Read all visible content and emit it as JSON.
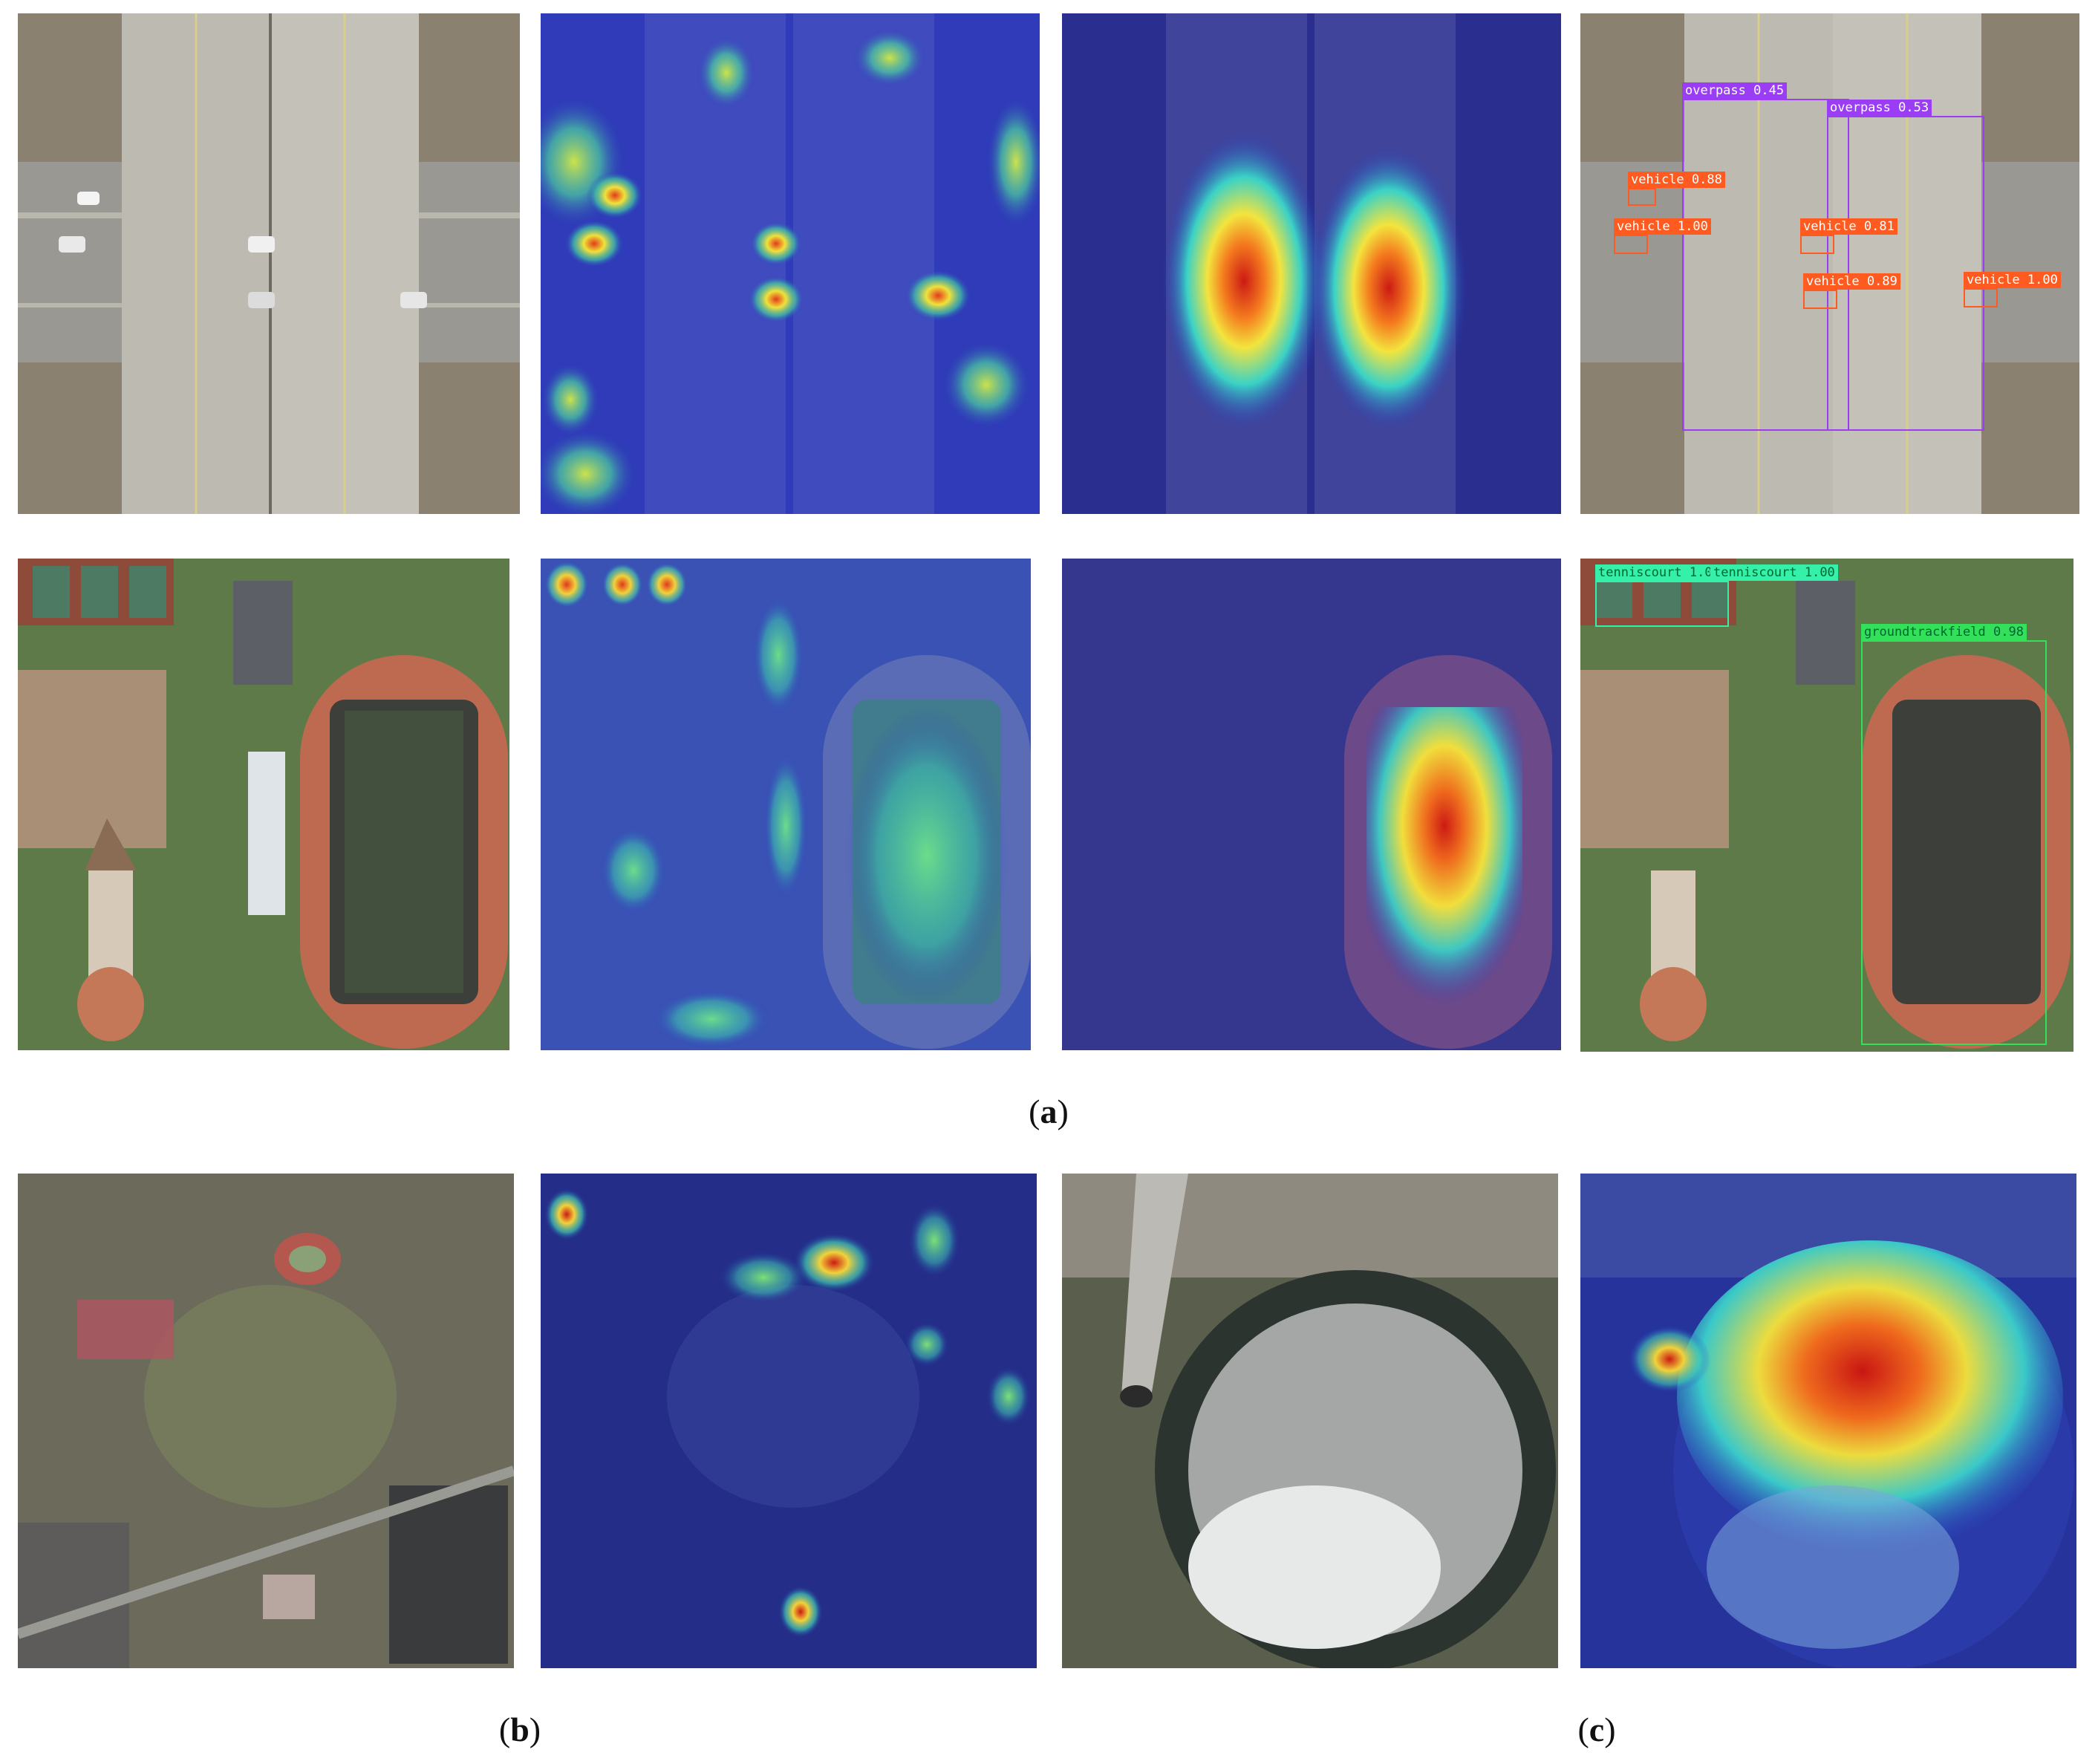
{
  "captions": {
    "a": "a",
    "b": "b",
    "c": "c"
  },
  "detections": {
    "overpass": [
      {
        "cls": "overpass",
        "score": "0.45"
      },
      {
        "cls": "overpass",
        "score": "0.53"
      }
    ],
    "vehicles": [
      {
        "cls": "vehicle",
        "score": "0.88"
      },
      {
        "cls": "vehicle",
        "score": "1.00"
      },
      {
        "cls": "vehicle",
        "score": "0.81"
      },
      {
        "cls": "vehicle",
        "score": "0.89"
      },
      {
        "cls": "vehicle",
        "score": "1.00"
      }
    ],
    "stadium": [
      {
        "cls": "tenniscourt",
        "score": "1.00"
      },
      {
        "cls": "tenniscourt",
        "score": "1.00"
      },
      {
        "cls": "groundtrackfield",
        "score": "0.98"
      }
    ]
  },
  "colors": {
    "overpass_box": "#9b3df5",
    "vehicle_box": "#ff5a1f",
    "tennis_box": "#34f0a8",
    "track_box": "#33e05a",
    "heat_low": "#2a2fb8",
    "heat_high": "#d81818"
  }
}
